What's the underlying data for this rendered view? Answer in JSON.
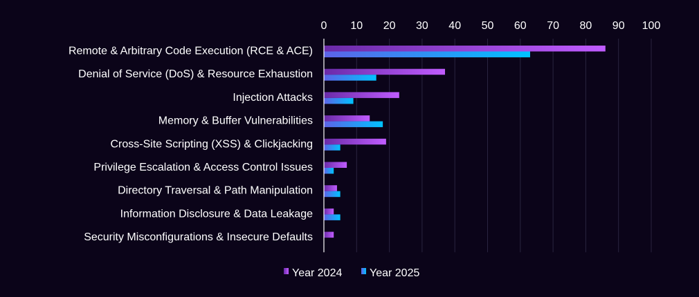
{
  "chart_data": {
    "type": "bar",
    "orientation": "horizontal",
    "title": "",
    "xlabel": "",
    "ylabel": "",
    "xlim": [
      0,
      100
    ],
    "xticks": [
      0,
      10,
      20,
      30,
      40,
      50,
      60,
      70,
      80,
      90,
      100
    ],
    "grid": true,
    "legend_position": "bottom",
    "categories": [
      "Remote & Arbitrary Code Execution (RCE & ACE)",
      "Denial of Service (DoS) & Resource Exhaustion",
      "Injection Attacks",
      "Memory & Buffer Vulnerabilities",
      "Cross-Site Scripting (XSS) & Clickjacking",
      "Privilege Escalation & Access Control Issues",
      "Directory Traversal & Path Manipulation",
      "Information Disclosure & Data Leakage",
      "Security Misconfigurations & Insecure Defaults"
    ],
    "series": [
      {
        "name": "Year 2024",
        "values": [
          86,
          37,
          23,
          14,
          19,
          7,
          4,
          3,
          3
        ],
        "color_start": "#6a2aa8",
        "color_end": "#c05cff"
      },
      {
        "name": "Year 2025",
        "values": [
          63,
          16,
          9,
          18,
          5,
          3,
          5,
          5,
          0
        ],
        "color_start": "#5d63e8",
        "color_end": "#00c2ff"
      }
    ]
  },
  "colors": {
    "background": "#0b0419",
    "grid": "#2a2540",
    "axis": "#ffffff",
    "text": "#ffffff"
  }
}
